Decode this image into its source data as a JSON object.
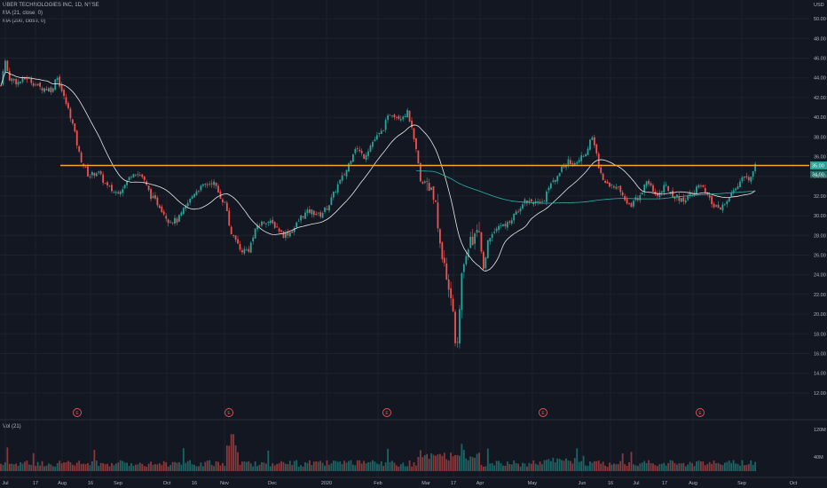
{
  "header": {
    "symbol_line": "UBER TECHNOLOGIES INC, 1D, NYSE",
    "ma21_label": "MA (21, close, 0)",
    "ma200_label": "MA (200, close, 0)",
    "currency": "USD",
    "volume_label": "Vol (21)"
  },
  "price_axis": {
    "ticks": [
      "50.00",
      "48.00",
      "46.00",
      "44.00",
      "42.00",
      "40.00",
      "38.00",
      "36.00",
      "34.00",
      "32.00",
      "30.00",
      "28.00",
      "26.00",
      "24.00",
      "22.00",
      "20.00",
      "18.00",
      "16.00",
      "14.00",
      "12.00"
    ],
    "last_price_label": "35.00",
    "ma_label": "34.00"
  },
  "volume_axis": {
    "ticks": [
      "120M",
      "40M"
    ]
  },
  "time_axis": {
    "ticks": [
      "Jul",
      "17",
      "Aug",
      "16",
      "Sep",
      "Oct",
      "16",
      "Nov",
      "Dec",
      "2020",
      "Feb",
      "Mar",
      "17",
      "Apr",
      "May",
      "Jun",
      "16",
      "Jul",
      "17",
      "Aug",
      "Sep",
      "Oct"
    ]
  },
  "earnings_marker": "E",
  "colors": {
    "background": "#131722",
    "up": "#26a69a",
    "down": "#ef5350",
    "ma21": "#e8e8e8",
    "ma200": "#2ab3a8",
    "hline": "#f5a623",
    "text": "#b2b5be"
  },
  "chart_data": {
    "type": "candlestick",
    "resistance_level": 35.1,
    "ylim": [
      11,
      51
    ],
    "price_path": [
      [
        0,
        42.5
      ],
      [
        5,
        46
      ],
      [
        10,
        44
      ],
      [
        20,
        43.5
      ],
      [
        30,
        44
      ],
      [
        45,
        43
      ],
      [
        60,
        42.8
      ],
      [
        63,
        44.5
      ],
      [
        72,
        42
      ],
      [
        80,
        40
      ],
      [
        90,
        36
      ],
      [
        100,
        34
      ],
      [
        110,
        34.5
      ],
      [
        120,
        33
      ],
      [
        130,
        32.3
      ],
      [
        140,
        33
      ],
      [
        150,
        34.5
      ],
      [
        160,
        34
      ],
      [
        170,
        32
      ],
      [
        180,
        31
      ],
      [
        190,
        29.5
      ],
      [
        200,
        29.5
      ],
      [
        210,
        31
      ],
      [
        220,
        32.5
      ],
      [
        230,
        33
      ],
      [
        240,
        33.5
      ],
      [
        248,
        32
      ],
      [
        255,
        31
      ],
      [
        260,
        28
      ],
      [
        265,
        27.5
      ],
      [
        270,
        26.5
      ],
      [
        280,
        26.5
      ],
      [
        290,
        29
      ],
      [
        300,
        29.5
      ],
      [
        310,
        29
      ],
      [
        320,
        28
      ],
      [
        330,
        28.5
      ],
      [
        340,
        30
      ],
      [
        350,
        30.5
      ],
      [
        360,
        30
      ],
      [
        370,
        31
      ],
      [
        380,
        33
      ],
      [
        390,
        34.5
      ],
      [
        400,
        37
      ],
      [
        410,
        36
      ],
      [
        420,
        37.5
      ],
      [
        430,
        38.5
      ],
      [
        440,
        40.5
      ],
      [
        450,
        40
      ],
      [
        460,
        40.5
      ],
      [
        470,
        36
      ],
      [
        475,
        33
      ],
      [
        480,
        33.5
      ],
      [
        490,
        31.5
      ],
      [
        495,
        28
      ],
      [
        500,
        25
      ],
      [
        505,
        23
      ],
      [
        510,
        21
      ],
      [
        515,
        15.5
      ],
      [
        520,
        24
      ],
      [
        525,
        26
      ],
      [
        530,
        27.5
      ],
      [
        540,
        28.5
      ],
      [
        545,
        24.5
      ],
      [
        550,
        27.5
      ],
      [
        560,
        29
      ],
      [
        570,
        29
      ],
      [
        580,
        30
      ],
      [
        590,
        31.5
      ],
      [
        600,
        31.5
      ],
      [
        610,
        31
      ],
      [
        620,
        33
      ],
      [
        630,
        34.5
      ],
      [
        640,
        35.5
      ],
      [
        650,
        35.5
      ],
      [
        660,
        36.5
      ],
      [
        668,
        38
      ],
      [
        675,
        35
      ],
      [
        680,
        33.5
      ],
      [
        690,
        33
      ],
      [
        700,
        32.5
      ],
      [
        710,
        31
      ],
      [
        720,
        32
      ],
      [
        730,
        33.5
      ],
      [
        740,
        32
      ],
      [
        750,
        33
      ],
      [
        760,
        32
      ],
      [
        770,
        31.5
      ],
      [
        780,
        32.5
      ],
      [
        790,
        33
      ],
      [
        800,
        31.5
      ],
      [
        810,
        30.5
      ],
      [
        820,
        31.5
      ],
      [
        830,
        33
      ],
      [
        840,
        34
      ],
      [
        845,
        33.5
      ],
      [
        850,
        35
      ]
    ]
  }
}
